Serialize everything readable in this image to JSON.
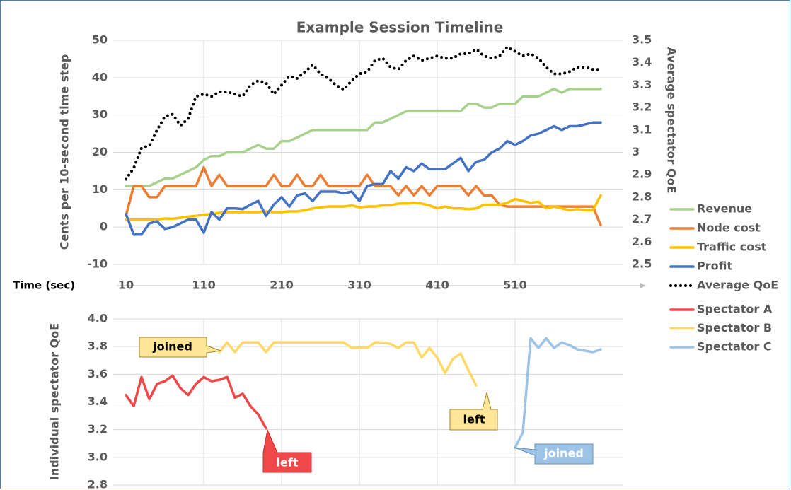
{
  "chart_data": [
    {
      "type": "line",
      "title": "Example Session Timeline",
      "x_label": "Time (sec)",
      "ylabel": "Cents per 10-second time step",
      "y2label": "Average spectator QoE",
      "x": [
        10,
        20,
        30,
        40,
        50,
        60,
        70,
        80,
        90,
        100,
        110,
        120,
        130,
        140,
        150,
        160,
        170,
        180,
        190,
        200,
        210,
        220,
        230,
        240,
        250,
        260,
        270,
        280,
        290,
        300,
        310,
        320,
        330,
        340,
        350,
        360,
        370,
        380,
        390,
        400,
        410,
        420,
        430,
        440,
        450,
        460,
        470,
        480,
        490,
        500,
        510,
        520,
        530,
        540,
        550,
        560,
        570,
        580,
        590,
        600,
        610,
        620
      ],
      "xlim": [
        10,
        620
      ],
      "xticks": [
        10,
        110,
        210,
        310,
        410,
        510
      ],
      "ylim": [
        -10,
        50
      ],
      "yticks": [
        -10,
        0,
        10,
        20,
        30,
        40,
        50
      ],
      "y2lim": [
        2.5,
        3.5
      ],
      "y2ticks": [
        2.5,
        2.6,
        2.7,
        2.8,
        2.9,
        3,
        3.1,
        3.2,
        3.3,
        3.4,
        3.5
      ],
      "grid": true,
      "series": [
        {
          "name": "Revenue",
          "color": "#a9d18e",
          "values": [
            11,
            11,
            11,
            11,
            12,
            13,
            13,
            14,
            15,
            16,
            18,
            19,
            19,
            20,
            20,
            20,
            21,
            22,
            21,
            21,
            23,
            23,
            24,
            25,
            26,
            26,
            26,
            26,
            26,
            26,
            26,
            26,
            28,
            28,
            29,
            30,
            31,
            31,
            31,
            31,
            31,
            31,
            31,
            31,
            33,
            33,
            32,
            32,
            33,
            33,
            33,
            35,
            35,
            35,
            36,
            37,
            36,
            37,
            37,
            37,
            37,
            37
          ]
        },
        {
          "name": "Node cost",
          "color": "#ed7d31",
          "values": [
            3,
            11,
            11,
            8,
            8,
            11,
            11,
            11,
            11,
            11,
            16,
            11,
            14,
            11,
            11,
            11,
            11,
            11,
            11,
            14,
            11,
            11,
            14,
            11,
            11,
            14,
            11,
            11,
            11,
            11,
            11,
            14,
            11,
            11,
            11,
            8.5,
            11,
            8.5,
            11,
            8.5,
            11,
            11,
            11,
            11,
            8.5,
            11,
            8.5,
            8.5,
            6,
            5.5,
            5.5,
            5.5,
            5.5,
            5.5,
            5.5,
            5.5,
            5.5,
            5.5,
            5.5,
            5.5,
            5.5,
            0.5
          ]
        },
        {
          "name": "Traffic cost",
          "color": "#ffc000",
          "values": [
            2,
            2,
            2,
            2,
            2,
            2.3,
            2.2,
            2.5,
            2.8,
            3,
            3.3,
            3.5,
            3.8,
            4,
            4,
            4,
            4,
            4,
            4.2,
            4,
            4,
            4.2,
            4.2,
            4.5,
            5,
            5.3,
            5.5,
            5.5,
            5.5,
            5.8,
            5.3,
            5.5,
            5.5,
            5.8,
            5.8,
            6.3,
            6.3,
            6.5,
            6.3,
            5.8,
            5,
            5.5,
            5,
            5,
            4.8,
            5,
            6,
            6,
            6,
            6.5,
            7.5,
            7,
            6.5,
            6.8,
            5,
            5.5,
            5,
            4.5,
            4.8,
            4.5,
            4.5,
            8.5
          ]
        },
        {
          "name": "Profit",
          "color": "#4472c4",
          "values": [
            3.5,
            -2,
            -2,
            1,
            1.5,
            -0.5,
            0,
            1,
            2,
            2,
            -1.5,
            4,
            2,
            5,
            5,
            4.8,
            6,
            7,
            3,
            6,
            8,
            5.5,
            8.5,
            9,
            7,
            9.5,
            9.5,
            9.5,
            9,
            9.5,
            7,
            11,
            11.5,
            11.5,
            15,
            13,
            16,
            15,
            17,
            15.5,
            15.5,
            15.5,
            17,
            18.5,
            15,
            17.5,
            18,
            20,
            21,
            23,
            22,
            23,
            24.5,
            25,
            26,
            27,
            26,
            27,
            27,
            27.5,
            28,
            28
          ]
        },
        {
          "name": "Average QoE",
          "color": "#000000",
          "style": "dotted",
          "axis": "y2",
          "values": [
            2.88,
            2.93,
            3.02,
            3.03,
            3.1,
            3.16,
            3.17,
            3.12,
            3.15,
            3.25,
            3.26,
            3.25,
            3.27,
            3.27,
            3.26,
            3.25,
            3.3,
            3.32,
            3.31,
            3.26,
            3.3,
            3.34,
            3.33,
            3.36,
            3.39,
            3.35,
            3.33,
            3.3,
            3.28,
            3.32,
            3.35,
            3.36,
            3.41,
            3.42,
            3.38,
            3.37,
            3.41,
            3.43,
            3.41,
            3.42,
            3.43,
            3.42,
            3.42,
            3.44,
            3.44,
            3.46,
            3.43,
            3.42,
            3.43,
            3.47,
            3.45,
            3.43,
            3.44,
            3.42,
            3.38,
            3.35,
            3.35,
            3.36,
            3.38,
            3.38,
            3.37,
            3.37
          ]
        }
      ]
    },
    {
      "type": "line",
      "ylabel": "Individual spectator QoE",
      "x": [
        10,
        20,
        30,
        40,
        50,
        60,
        70,
        80,
        90,
        100,
        110,
        120,
        130,
        140,
        150,
        160,
        170,
        180,
        190,
        200,
        210,
        220,
        230,
        240,
        250,
        260,
        270,
        280,
        290,
        300,
        310,
        320,
        330,
        340,
        350,
        360,
        370,
        380,
        390,
        400,
        410,
        420,
        430,
        440,
        450,
        460,
        470,
        480,
        490,
        500,
        510,
        520,
        530,
        540,
        550,
        560,
        570,
        580,
        590,
        600,
        610,
        620
      ],
      "xlim": [
        10,
        620
      ],
      "xticks": [
        10,
        110,
        210,
        310,
        410,
        510
      ],
      "ylim": [
        2.8,
        4.0
      ],
      "yticks": [
        2.8,
        {
          "value": 3.0,
          "label": "3.0"
        },
        3.2,
        3.4,
        3.6,
        3.8,
        {
          "value": 4.0,
          "label": "4.0"
        }
      ],
      "grid": true,
      "series": [
        {
          "name": "Spectator A",
          "color": "#f04848",
          "values": [
            3.45,
            3.37,
            3.58,
            3.42,
            3.53,
            3.55,
            3.59,
            3.5,
            3.45,
            3.53,
            3.58,
            3.55,
            3.56,
            3.58,
            3.43,
            3.46,
            3.37,
            3.31,
            3.21,
            null,
            null,
            null,
            null,
            null,
            null,
            null,
            null,
            null,
            null,
            null,
            null,
            null,
            null,
            null,
            null,
            null,
            null,
            null,
            null,
            null,
            null,
            null,
            null,
            null,
            null,
            null,
            null,
            null,
            null,
            null,
            null,
            null,
            null,
            null,
            null,
            null,
            null,
            null,
            null,
            null,
            null,
            null
          ]
        },
        {
          "name": "Spectator B",
          "color": "#ffd966",
          "values": [
            null,
            null,
            null,
            null,
            null,
            null,
            null,
            null,
            null,
            null,
            null,
            null,
            3.76,
            3.83,
            3.76,
            3.83,
            3.83,
            3.83,
            3.76,
            3.83,
            3.83,
            3.83,
            3.83,
            3.83,
            3.83,
            3.83,
            3.83,
            3.83,
            3.83,
            3.79,
            3.79,
            3.79,
            3.83,
            3.83,
            3.82,
            3.79,
            3.83,
            3.83,
            3.72,
            3.79,
            3.72,
            3.61,
            3.71,
            3.75,
            3.63,
            3.52,
            null,
            null,
            null,
            null,
            null,
            null,
            null,
            null,
            null,
            null,
            null,
            null,
            null,
            null,
            null,
            null
          ]
        },
        {
          "name": "Spectator C",
          "color": "#9dc3e6",
          "values": [
            null,
            null,
            null,
            null,
            null,
            null,
            null,
            null,
            null,
            null,
            null,
            null,
            null,
            null,
            null,
            null,
            null,
            null,
            null,
            null,
            null,
            null,
            null,
            null,
            null,
            null,
            null,
            null,
            null,
            null,
            null,
            null,
            null,
            null,
            null,
            null,
            null,
            null,
            null,
            null,
            null,
            null,
            null,
            null,
            null,
            null,
            null,
            null,
            null,
            null,
            3.07,
            3.18,
            3.86,
            3.79,
            3.86,
            3.79,
            3.83,
            3.81,
            3.78,
            3.77,
            3.76,
            3.78
          ]
        }
      ],
      "annotations": [
        "joined",
        "left",
        "left",
        "joined"
      ]
    }
  ]
}
